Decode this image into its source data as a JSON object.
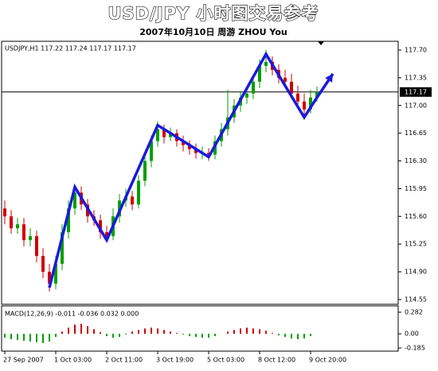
{
  "chart_data": [
    {
      "type": "candlestick",
      "title": "USD/JPY 小时图交易参考",
      "subtitle": "2007年10月10日    周游  ZHOU You",
      "header": "USDJPY,H1  117.22 117.24 117.17 117.17",
      "categories": [
        "27 Sep 2007",
        null,
        null,
        null,
        null,
        null,
        null,
        null,
        "1 Oct 03:00",
        null,
        null,
        null,
        null,
        null,
        null,
        null,
        "2 Oct 11:00",
        null,
        null,
        null,
        null,
        null,
        null,
        null,
        "3 Oct 19:00",
        null,
        null,
        null,
        null,
        null,
        null,
        null,
        "5 Oct 03:00",
        null,
        null,
        null,
        null,
        null,
        null,
        null,
        "8 Oct 12:00",
        null,
        null,
        null,
        null,
        null,
        null,
        null,
        "9 Oct 20:00",
        null
      ],
      "ohlc": {
        "open": [
          115.7,
          115.6,
          115.45,
          115.5,
          115.3,
          115.35,
          115.1,
          114.9,
          114.75,
          115.0,
          115.4,
          115.7,
          115.9,
          115.75,
          115.6,
          115.55,
          115.4,
          115.35,
          115.6,
          115.8,
          115.85,
          115.75,
          116.05,
          116.3,
          116.55,
          116.7,
          116.6,
          116.65,
          116.55,
          116.5,
          116.45,
          116.4,
          116.4,
          116.38,
          116.55,
          116.7,
          116.85,
          117.0,
          117.1,
          117.15,
          117.3,
          117.5,
          117.55,
          117.45,
          117.35,
          117.3,
          117.15,
          117.05,
          116.95,
          117.1
        ],
        "high": [
          115.8,
          115.68,
          115.58,
          115.58,
          115.45,
          115.42,
          115.2,
          115.0,
          115.1,
          115.5,
          115.8,
          116.0,
          115.98,
          115.82,
          115.68,
          115.62,
          115.48,
          115.7,
          115.88,
          115.95,
          115.92,
          116.12,
          116.38,
          116.62,
          116.8,
          116.76,
          116.72,
          116.7,
          116.62,
          116.56,
          116.52,
          116.48,
          116.46,
          116.62,
          116.78,
          117.2,
          117.08,
          117.18,
          117.22,
          117.38,
          117.58,
          117.7,
          117.62,
          117.52,
          117.45,
          117.4,
          117.25,
          117.15,
          117.2,
          117.24
        ],
        "low": [
          115.5,
          115.38,
          115.38,
          115.22,
          115.22,
          115.02,
          114.82,
          114.65,
          114.68,
          114.92,
          115.32,
          115.62,
          115.68,
          115.52,
          115.48,
          115.32,
          115.28,
          115.3,
          115.52,
          115.72,
          115.68,
          115.7,
          115.98,
          116.22,
          116.48,
          116.52,
          116.55,
          116.48,
          116.42,
          116.38,
          116.33,
          116.32,
          116.3,
          116.32,
          116.48,
          116.62,
          116.78,
          116.92,
          117.02,
          117.08,
          117.22,
          117.42,
          117.38,
          117.28,
          117.22,
          117.08,
          116.98,
          116.88,
          116.9,
          117.05
        ],
        "close": [
          115.6,
          115.45,
          115.5,
          115.3,
          115.35,
          115.1,
          114.9,
          114.75,
          115.0,
          115.4,
          115.7,
          115.9,
          115.75,
          115.6,
          115.55,
          115.4,
          115.35,
          115.6,
          115.8,
          115.85,
          115.75,
          116.05,
          116.3,
          116.55,
          116.7,
          116.6,
          116.65,
          116.55,
          116.5,
          116.45,
          116.4,
          116.4,
          116.38,
          116.55,
          116.7,
          116.85,
          117.0,
          117.1,
          117.15,
          117.3,
          117.5,
          117.55,
          117.45,
          117.35,
          117.3,
          117.15,
          117.05,
          116.95,
          117.1,
          117.17
        ]
      },
      "up_color": "#00a000",
      "down_color": "#d00000",
      "trend_line": {
        "color": "#1a1adc",
        "x": [
          7,
          11,
          16,
          24,
          32,
          41,
          47,
          49,
          51.5
        ],
        "y": [
          114.7,
          115.97,
          115.3,
          116.75,
          116.35,
          117.65,
          116.85,
          117.1,
          117.4
        ]
      },
      "last_price": 117.17,
      "ylim": [
        114.49,
        117.81
      ],
      "yticks": [
        {
          "value": 117.7,
          "label": "117.70"
        },
        117.35,
        {
          "value": 117.0,
          "label": "117.00"
        },
        116.65,
        {
          "value": 116.3,
          "label": "116.30"
        },
        115.95,
        {
          "value": 115.6,
          "label": "115.60"
        },
        115.25,
        {
          "value": 114.9,
          "label": "114.90"
        },
        114.55
      ]
    },
    {
      "type": "histogram-bar",
      "header": "MACD(12,26,9) -0.011 -0.036 0.032 0.000",
      "values": [
        -0.05,
        -0.07,
        -0.08,
        -0.09,
        -0.1,
        -0.11,
        -0.12,
        -0.1,
        -0.04,
        0.03,
        0.08,
        0.12,
        0.13,
        0.1,
        0.06,
        0.02,
        -0.03,
        -0.05,
        -0.04,
        -0.01,
        0.03,
        0.05,
        0.07,
        0.08,
        0.07,
        0.05,
        0.03,
        0.01,
        -0.01,
        -0.03,
        -0.04,
        -0.05,
        -0.05,
        -0.03,
        0.0,
        0.03,
        0.05,
        0.07,
        0.08,
        0.07,
        0.06,
        0.04,
        0.01,
        -0.02,
        -0.04,
        -0.06,
        -0.07,
        -0.06,
        -0.03,
        0.0
      ],
      "positive_color": "#d00000",
      "negative_color": "#00a000",
      "ylim": [
        -0.226,
        0.365
      ],
      "yticks": [
        0.282,
        {
          "value": 0,
          "label": "0.00"
        },
        -0.185
      ]
    }
  ]
}
